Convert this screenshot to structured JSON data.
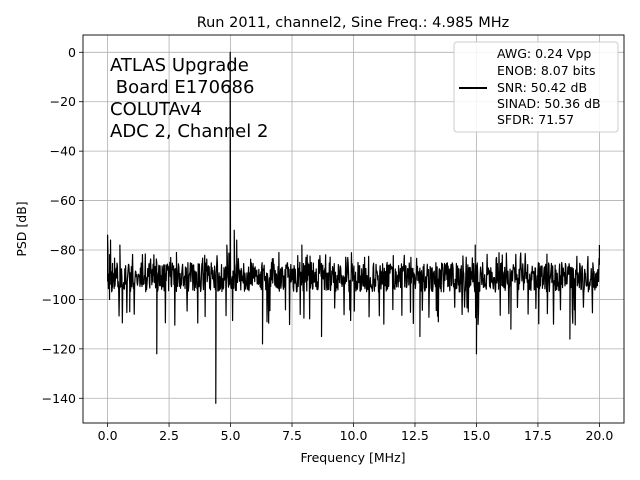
{
  "chart_data": {
    "type": "line",
    "title": "Run 2011, channel2, Sine Freq.: 4.985 MHz",
    "xlabel": "Frequency [MHz]",
    "ylabel": "PSD [dB]",
    "xlim": [
      -1.0,
      21.0
    ],
    "ylim": [
      -150,
      7
    ],
    "xticks": [
      0.0,
      2.5,
      5.0,
      7.5,
      10.0,
      12.5,
      15.0,
      17.5,
      20.0
    ],
    "xtick_labels": [
      "0.0",
      "2.5",
      "5.0",
      "7.5",
      "10.0",
      "12.5",
      "15.0",
      "17.5",
      "20.0"
    ],
    "yticks": [
      0,
      -20,
      -40,
      -60,
      -80,
      -100,
      -120,
      -140
    ],
    "ytick_labels": [
      "0",
      "−20",
      "−40",
      "−60",
      "−80",
      "−100",
      "−120",
      "−140"
    ],
    "grid": true,
    "line_color": "#000000",
    "annotation_lines": [
      "ATLAS Upgrade",
      " Board E170686",
      "COLUTAv4",
      "ADC 2, Channel 2"
    ],
    "legend": {
      "placement": "top-right",
      "lines": [
        "AWG: 0.24 Vpp",
        "ENOB: 8.07 bits",
        "SNR: 50.42 dB",
        "SINAD: 50.36 dB",
        "SFDR: 71.57"
      ]
    },
    "series": [
      {
        "x_range": [
          0.0,
          20.0
        ],
        "noise_floor_db": [
          -100,
          -80
        ],
        "points": [
          {
            "x": 0.0,
            "y": -74
          },
          {
            "x": 0.02,
            "y": -92
          },
          {
            "x": 0.08,
            "y": -100
          },
          {
            "x": 0.12,
            "y": -76
          },
          {
            "x": 0.2,
            "y": -95
          },
          {
            "x": 0.5,
            "y": -78
          },
          {
            "x": 0.9,
            "y": -105
          },
          {
            "x": 2.0,
            "y": -122
          },
          {
            "x": 2.8,
            "y": -81
          },
          {
            "x": 4.4,
            "y": -142
          },
          {
            "x": 4.85,
            "y": -78
          },
          {
            "x": 4.985,
            "y": 0
          },
          {
            "x": 5.15,
            "y": -72
          },
          {
            "x": 5.25,
            "y": -76
          },
          {
            "x": 6.3,
            "y": -118
          },
          {
            "x": 7.9,
            "y": -78
          },
          {
            "x": 8.7,
            "y": -115
          },
          {
            "x": 12.7,
            "y": -115
          },
          {
            "x": 14.95,
            "y": -78
          },
          {
            "x": 15.0,
            "y": -122
          },
          {
            "x": 16.4,
            "y": -112
          },
          {
            "x": 18.8,
            "y": -116
          },
          {
            "x": 20.0,
            "y": -78
          }
        ]
      }
    ]
  }
}
